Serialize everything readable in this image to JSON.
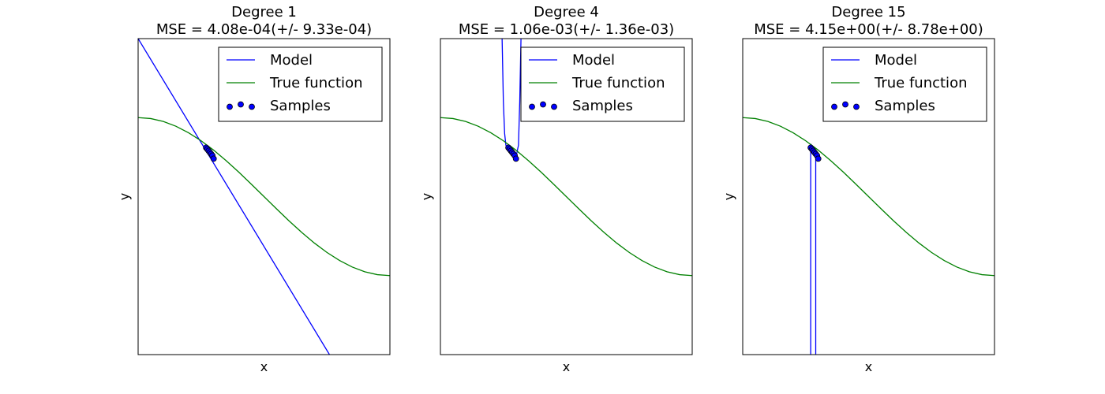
{
  "chart_data": [
    {
      "type": "line",
      "title": "Degree 1",
      "subtitle": "MSE = 4.08e-04(+/- 9.33e-04)",
      "xlabel": "x",
      "ylabel": "y",
      "xlim": [
        0,
        1
      ],
      "ylim": [
        -2,
        2
      ],
      "xticks": [],
      "yticks": [],
      "grid": false,
      "legend": {
        "position": "top-right",
        "entries": [
          "Model",
          "True function",
          "Samples"
        ]
      },
      "series": [
        {
          "name": "Model",
          "kind": "line",
          "color": "#0000ff",
          "x": [
            0.0,
            0.76
          ],
          "y": [
            2.0,
            -2.0
          ]
        },
        {
          "name": "True function",
          "kind": "line",
          "color": "#008000",
          "x": [
            0.0,
            0.05,
            0.1,
            0.15,
            0.2,
            0.25,
            0.3,
            0.35,
            0.4,
            0.45,
            0.5,
            0.55,
            0.6,
            0.65,
            0.7,
            0.75,
            0.8,
            0.85,
            0.9,
            0.95,
            1.0
          ],
          "y": [
            1.0,
            0.988,
            0.951,
            0.891,
            0.809,
            0.707,
            0.588,
            0.454,
            0.309,
            0.156,
            0.0,
            -0.156,
            -0.309,
            -0.454,
            -0.588,
            -0.707,
            -0.809,
            -0.891,
            -0.951,
            -0.988,
            -1.0
          ]
        },
        {
          "name": "Samples",
          "kind": "scatter",
          "color": "#0000ff",
          "x": [
            0.27,
            0.275,
            0.28,
            0.285,
            0.29,
            0.295,
            0.3
          ],
          "y": [
            0.62,
            0.6,
            0.58,
            0.56,
            0.54,
            0.52,
            0.48
          ]
        }
      ]
    },
    {
      "type": "line",
      "title": "Degree 4",
      "subtitle": "MSE = 1.06e-03(+/- 1.36e-03)",
      "xlabel": "x",
      "ylabel": "y",
      "xlim": [
        0,
        1
      ],
      "ylim": [
        -2,
        2
      ],
      "xticks": [],
      "yticks": [],
      "grid": false,
      "legend": {
        "position": "top-right",
        "entries": [
          "Model",
          "True function",
          "Samples"
        ]
      },
      "series": [
        {
          "name": "Model",
          "kind": "line",
          "color": "#0000ff",
          "x": [
            0.245,
            0.25,
            0.255,
            0.26,
            0.27,
            0.28,
            0.29,
            0.3,
            0.31,
            0.315,
            0.32
          ],
          "y": [
            2.0,
            1.2,
            0.8,
            0.65,
            0.6,
            0.55,
            0.52,
            0.5,
            0.65,
            1.2,
            2.0
          ]
        },
        {
          "name": "True function",
          "kind": "line",
          "color": "#008000",
          "x": [
            0.0,
            0.05,
            0.1,
            0.15,
            0.2,
            0.25,
            0.3,
            0.35,
            0.4,
            0.45,
            0.5,
            0.55,
            0.6,
            0.65,
            0.7,
            0.75,
            0.8,
            0.85,
            0.9,
            0.95,
            1.0
          ],
          "y": [
            1.0,
            0.988,
            0.951,
            0.891,
            0.809,
            0.707,
            0.588,
            0.454,
            0.309,
            0.156,
            0.0,
            -0.156,
            -0.309,
            -0.454,
            -0.588,
            -0.707,
            -0.809,
            -0.891,
            -0.951,
            -0.988,
            -1.0
          ]
        },
        {
          "name": "Samples",
          "kind": "scatter",
          "color": "#0000ff",
          "x": [
            0.27,
            0.275,
            0.28,
            0.285,
            0.29,
            0.295,
            0.3
          ],
          "y": [
            0.62,
            0.6,
            0.58,
            0.56,
            0.54,
            0.52,
            0.48
          ]
        }
      ]
    },
    {
      "type": "line",
      "title": "Degree 15",
      "subtitle": "MSE = 4.15e+00(+/- 8.78e+00)",
      "xlabel": "x",
      "ylabel": "y",
      "xlim": [
        0,
        1
      ],
      "ylim": [
        -2,
        2
      ],
      "xticks": [],
      "yticks": [],
      "grid": false,
      "legend": {
        "position": "top-right",
        "entries": [
          "Model",
          "True function",
          "Samples"
        ]
      },
      "series": [
        {
          "name": "Model",
          "kind": "line",
          "color": "#0000ff",
          "x": [
            0.27,
            0.27,
            0.273,
            0.28,
            0.285,
            0.29,
            0.295,
            0.29,
            0.29
          ],
          "y": [
            -2.0,
            0.6,
            0.65,
            0.6,
            0.56,
            0.54,
            0.5,
            0.5,
            -2.0
          ]
        },
        {
          "name": "True function",
          "kind": "line",
          "color": "#008000",
          "x": [
            0.0,
            0.05,
            0.1,
            0.15,
            0.2,
            0.25,
            0.3,
            0.35,
            0.4,
            0.45,
            0.5,
            0.55,
            0.6,
            0.65,
            0.7,
            0.75,
            0.8,
            0.85,
            0.9,
            0.95,
            1.0
          ],
          "y": [
            1.0,
            0.988,
            0.951,
            0.891,
            0.809,
            0.707,
            0.588,
            0.454,
            0.309,
            0.156,
            0.0,
            -0.156,
            -0.309,
            -0.454,
            -0.588,
            -0.707,
            -0.809,
            -0.891,
            -0.951,
            -0.988,
            -1.0
          ]
        },
        {
          "name": "Samples",
          "kind": "scatter",
          "color": "#0000ff",
          "x": [
            0.27,
            0.275,
            0.28,
            0.285,
            0.29,
            0.295,
            0.3
          ],
          "y": [
            0.62,
            0.6,
            0.58,
            0.56,
            0.54,
            0.52,
            0.48
          ]
        }
      ]
    }
  ]
}
